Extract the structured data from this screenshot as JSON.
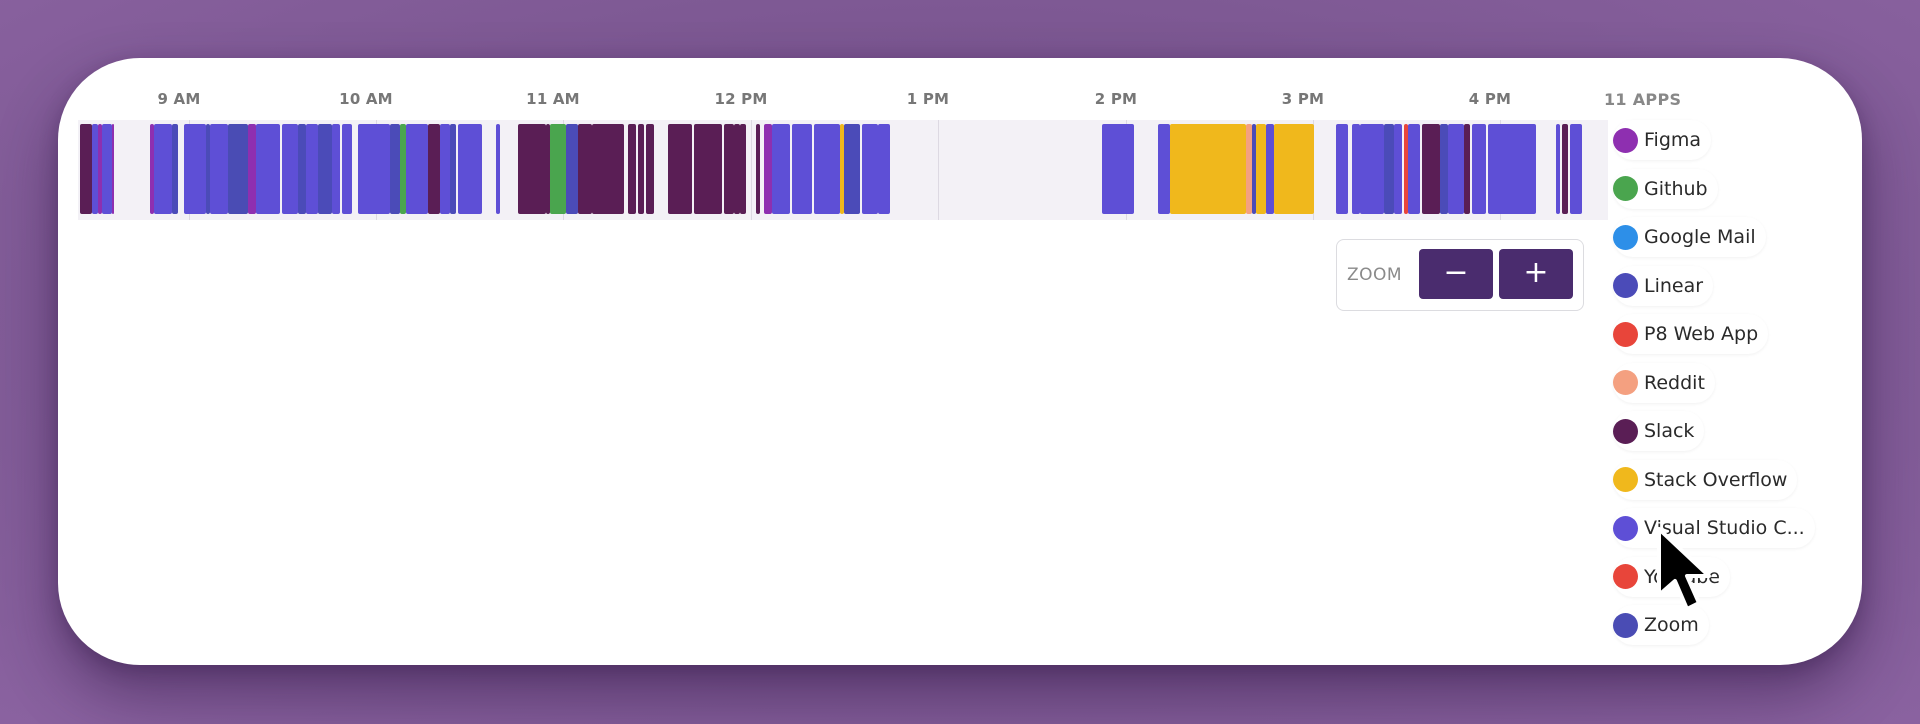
{
  "timeline": {
    "hours": [
      "9 AM",
      "10 AM",
      "11 AM",
      "12 PM",
      "1 PM",
      "2 PM",
      "3 PM",
      "4 PM"
    ],
    "app_colors": {
      "figma": "#8e2fb0",
      "github": "#4aa54e",
      "google-mail": "#2d8fe8",
      "linear": "#4b4bb8",
      "p8": "#e8453a",
      "reddit": "#f4a080",
      "slack": "#5a1e55",
      "stackoverflow": "#f0b81c",
      "vscode": "#5e4fd6",
      "youtube": "#e8453a",
      "zoom": "#4a4cb4"
    }
  },
  "zoom": {
    "label": "ZOOM",
    "minus": "−",
    "plus": "+"
  },
  "apps": {
    "title": "11 APPS",
    "items": [
      {
        "name": "Figma",
        "color": "#8e2fb0"
      },
      {
        "name": "Github",
        "color": "#4aa54e"
      },
      {
        "name": "Google Mail",
        "color": "#2d8fe8"
      },
      {
        "name": "Linear",
        "color": "#4b4bb8"
      },
      {
        "name": "P8 Web App",
        "color": "#e8453a"
      },
      {
        "name": "Reddit",
        "color": "#f4a080"
      },
      {
        "name": "Slack",
        "color": "#5a1e55"
      },
      {
        "name": "Stack Overflow",
        "color": "#f0b81c"
      },
      {
        "name": "Visual Studio C...",
        "color": "#5e4fd6"
      },
      {
        "name": "Youtube",
        "color": "#e8453a"
      },
      {
        "name": "Zoom",
        "color": "#4a4cb4"
      }
    ]
  }
}
